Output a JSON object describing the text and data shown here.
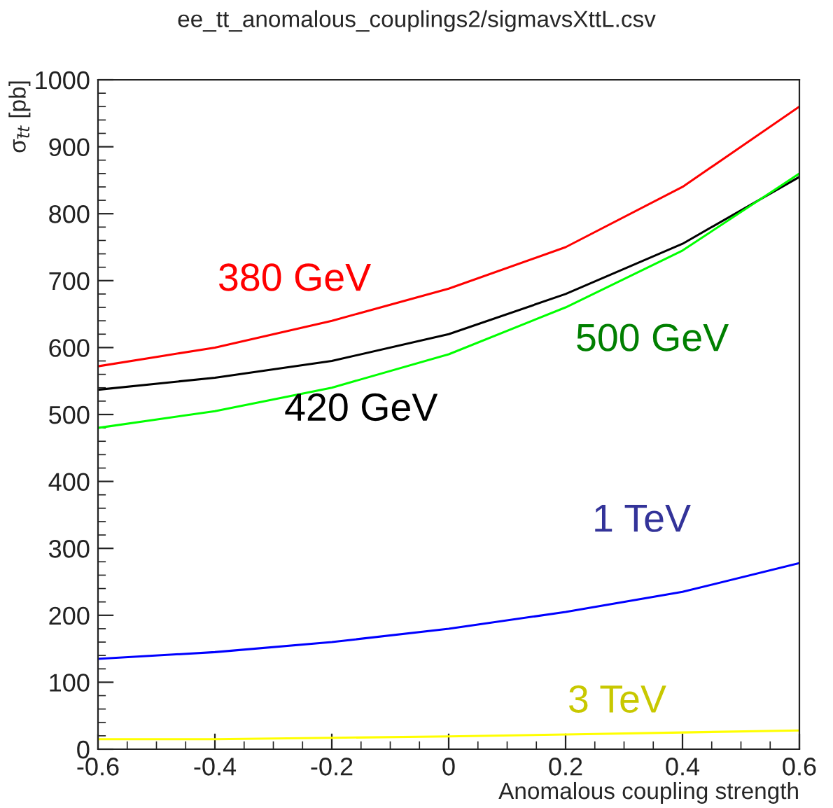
{
  "chart_data": {
    "type": "line",
    "title": "ee_tt_anomalous_couplings2/sigmavsXttL.csv",
    "xlabel": "Anomalous coupling strength",
    "ylabel": "σ$_{t̄t}$ [pb]",
    "x": [
      -0.6,
      -0.4,
      -0.2,
      0,
      0.2,
      0.4,
      0.6
    ],
    "series": [
      {
        "name": "380 GeV",
        "color": "#ff0000",
        "values": [
          572,
          600,
          640,
          688,
          750,
          840,
          960
        ]
      },
      {
        "name": "420 GeV",
        "color": "#000000",
        "values": [
          537,
          555,
          580,
          620,
          680,
          755,
          855
        ]
      },
      {
        "name": "500 GeV",
        "color": "#00ff00",
        "values": [
          480,
          505,
          540,
          590,
          660,
          745,
          860
        ]
      },
      {
        "name": "1 TeV",
        "color": "#0000ff",
        "values": [
          135,
          145,
          160,
          180,
          205,
          235,
          278
        ]
      },
      {
        "name": "3 TeV",
        "color": "#ffff00",
        "values": [
          15,
          15,
          17,
          19,
          22,
          25,
          28
        ]
      }
    ],
    "xlim": [
      -0.6,
      0.6
    ],
    "ylim": [
      0,
      1000
    ],
    "xticks": [
      -0.6,
      -0.4,
      -0.2,
      0,
      0.2,
      0.4,
      0.6
    ],
    "yticks": [
      0,
      100,
      200,
      300,
      400,
      500,
      600,
      700,
      800,
      900,
      1000
    ],
    "grid": false,
    "legend": false,
    "marker": "none",
    "line_style": "solid"
  }
}
